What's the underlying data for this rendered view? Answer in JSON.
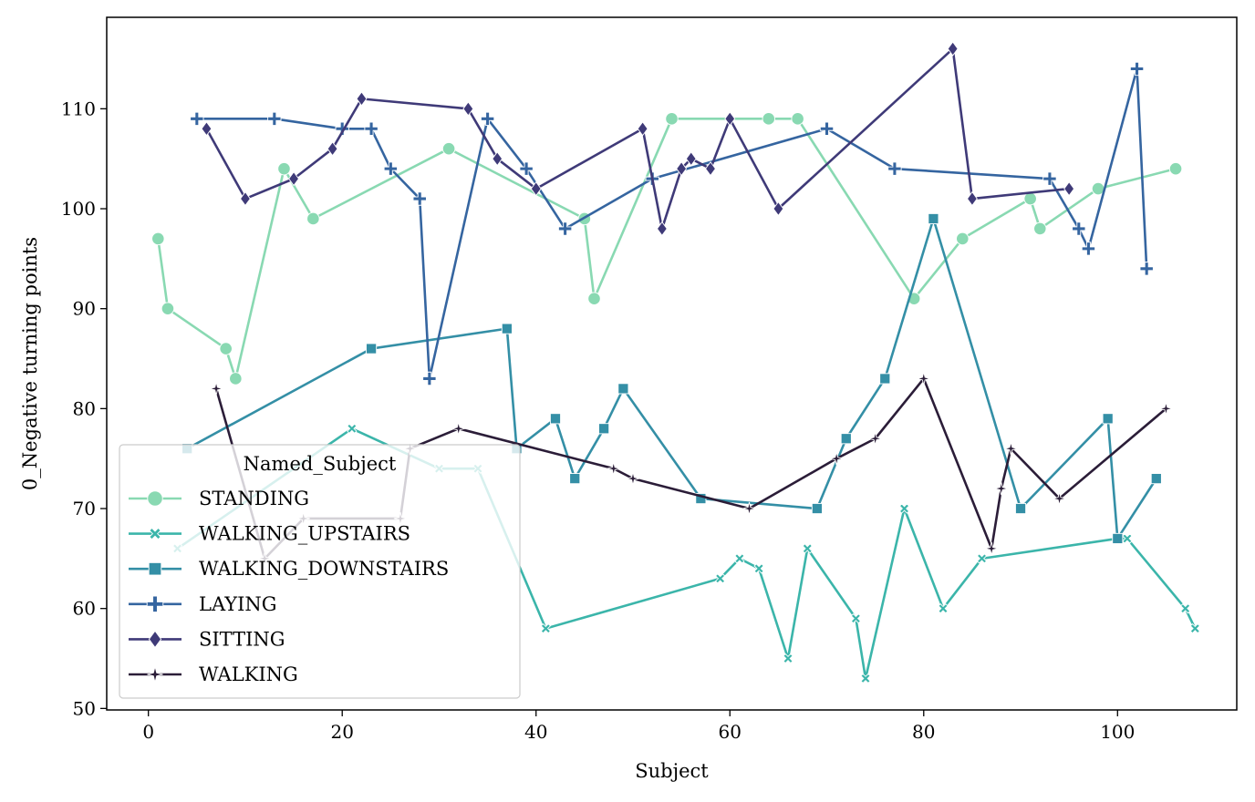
{
  "chart_data": {
    "type": "line",
    "title": "",
    "xlabel": "Subject",
    "ylabel": "0_Negative turning points",
    "xlim": [
      -4.3,
      112.3
    ],
    "ylim": [
      49.85,
      119.15
    ],
    "xticks": [
      0,
      20,
      40,
      60,
      80,
      100
    ],
    "yticks": [
      50,
      60,
      70,
      80,
      90,
      100,
      110
    ],
    "grid": false,
    "legend": {
      "title": "Named_Subject",
      "placement": "lower-left"
    },
    "series": [
      {
        "name": "STANDING",
        "color": "#89d9b2",
        "marker": "circle",
        "x": [
          1,
          2,
          8,
          9,
          14,
          17,
          31,
          45,
          46,
          54,
          64,
          67,
          79,
          84,
          91,
          92,
          98,
          106
        ],
        "y": [
          97,
          90,
          86,
          83,
          104,
          99,
          106,
          99,
          91,
          109,
          109,
          109,
          91,
          97,
          101,
          98,
          102,
          104
        ]
      },
      {
        "name": "WALKING_UPSTAIRS",
        "color": "#3bb5aa",
        "marker": "x",
        "x": [
          3,
          21,
          30,
          34,
          41,
          59,
          61,
          63,
          66,
          68,
          73,
          74,
          78,
          82,
          86,
          100,
          101,
          107,
          108
        ],
        "y": [
          66,
          78,
          74,
          74,
          58,
          63,
          65,
          64,
          55,
          66,
          59,
          53,
          70,
          60,
          65,
          67,
          67,
          60,
          58
        ]
      },
      {
        "name": "WALKING_DOWNSTAIRS",
        "color": "#348fa6",
        "marker": "square",
        "x": [
          4,
          23,
          37,
          38,
          42,
          44,
          47,
          49,
          57,
          69,
          72,
          76,
          81,
          90,
          99,
          100,
          104
        ],
        "y": [
          76,
          86,
          88,
          76,
          79,
          73,
          78,
          82,
          71,
          70,
          77,
          83,
          99,
          70,
          79,
          67,
          73
        ]
      },
      {
        "name": "LAYING",
        "color": "#3565a0",
        "marker": "plus",
        "x": [
          5,
          13,
          20,
          23,
          25,
          28,
          29,
          35,
          39,
          43,
          52,
          70,
          77,
          93,
          96,
          97,
          102,
          103
        ],
        "y": [
          109,
          109,
          108,
          108,
          104,
          101,
          83,
          109,
          104,
          98,
          103,
          108,
          104,
          103,
          98,
          96,
          114,
          94
        ]
      },
      {
        "name": "SITTING",
        "color": "#3f3a78",
        "marker": "diamond",
        "x": [
          6,
          10,
          15,
          19,
          22,
          33,
          36,
          40,
          51,
          53,
          55,
          56,
          58,
          60,
          65,
          83,
          85,
          95
        ],
        "y": [
          108,
          101,
          103,
          106,
          111,
          110,
          105,
          102,
          108,
          98,
          104,
          105,
          104,
          109,
          100,
          116,
          101,
          102
        ]
      },
      {
        "name": "WALKING",
        "color": "#2b1d38",
        "marker": "star",
        "x": [
          7,
          12,
          16,
          26,
          27,
          32,
          48,
          50,
          62,
          71,
          75,
          80,
          87,
          88,
          89,
          94,
          105
        ],
        "y": [
          82,
          65,
          69,
          69,
          76,
          78,
          74,
          73,
          70,
          75,
          77,
          83,
          66,
          72,
          76,
          71,
          80
        ]
      }
    ]
  }
}
